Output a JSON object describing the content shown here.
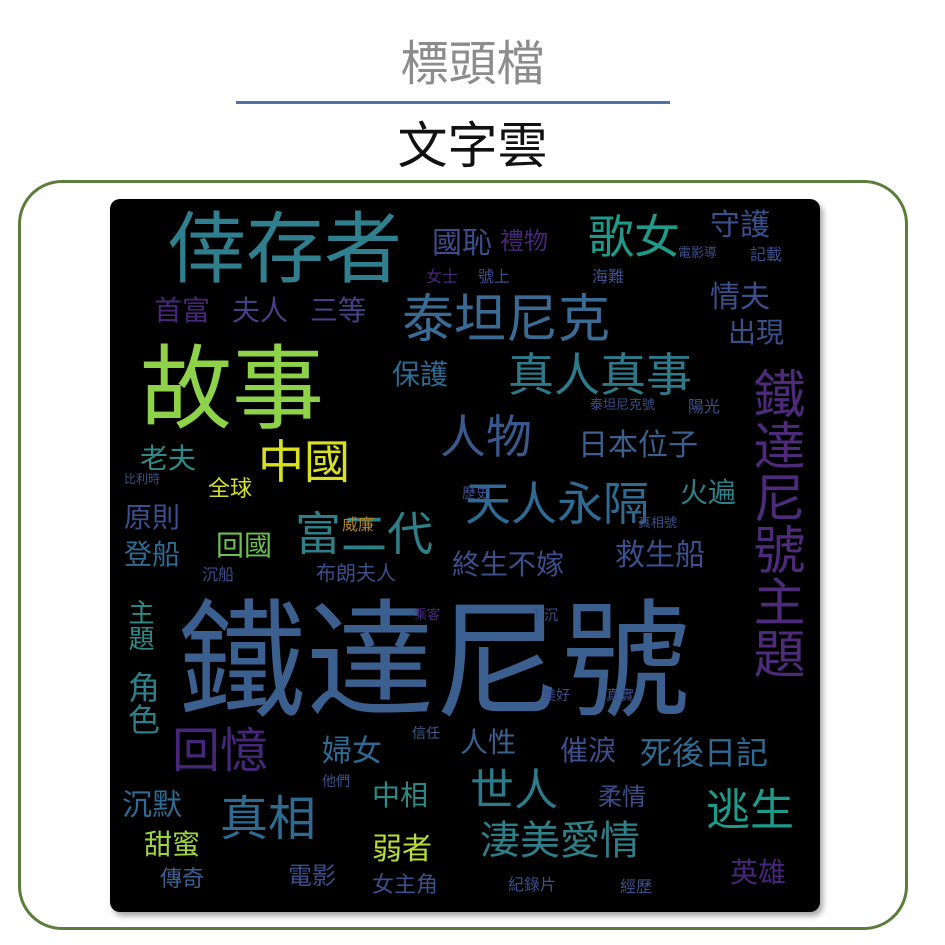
{
  "header": {
    "label": "標頭檔"
  },
  "title": "文字雲",
  "colors": {
    "divider": "#4f73ad",
    "frame": "#5d7d3a",
    "cloud_bg": "#000000"
  },
  "wordcloud": {
    "w01": "鐵達尼號",
    "w02": "倖存者",
    "w03": "故事",
    "w04": "泰坦尼克",
    "w05": "鐵達尼號主題",
    "w06": "真人真事",
    "w07": "人物",
    "w08": "中國",
    "w09": "天人永隔",
    "w10": "富二代",
    "w11": "歌女",
    "w12": "守護",
    "w13": "國恥",
    "w14": "三等",
    "w15": "夫人",
    "w16": "首富",
    "w17": "情夫",
    "w18": "出現",
    "w19": "保護",
    "w20": "老夫",
    "w21": "日本位子",
    "w22": "全球",
    "w23": "火遍",
    "w24": "原則",
    "w25": "回國",
    "w26": "登船",
    "w27": "救生船",
    "w28": "終生不嫁",
    "w29": "布朗夫人",
    "w30": "回憶",
    "w31": "婦女",
    "w32": "人性",
    "w33": "催淚",
    "w34": "死後日記",
    "w35": "世人",
    "w36": "中相",
    "w37": "柔情",
    "w38": "真相",
    "w39": "沉默",
    "w40": "逃生",
    "w41": "淒美愛情",
    "w42": "甜蜜",
    "w43": "弱者",
    "w44": "傳奇",
    "w45": "電影",
    "w46": "女主角",
    "w47": "紀錄片",
    "w48": "英雄",
    "w49": "角色",
    "w50": "主題",
    "w51": "美好",
    "w52": "真實",
    "w53": "信任",
    "w54": "他們",
    "w55": "歷史",
    "w56": "海難",
    "w57": "電影導",
    "w58": "記載",
    "w59": "女士",
    "w60": "號上",
    "w61": "沉船",
    "w62": "泰坦尼克號",
    "w63": "陽光",
    "w64": "比利時",
    "w65": "真相號",
    "w66": "經歷",
    "w67": "威廉",
    "w68": "乘客",
    "w69": "禮物",
    "w70": "下沉"
  }
}
